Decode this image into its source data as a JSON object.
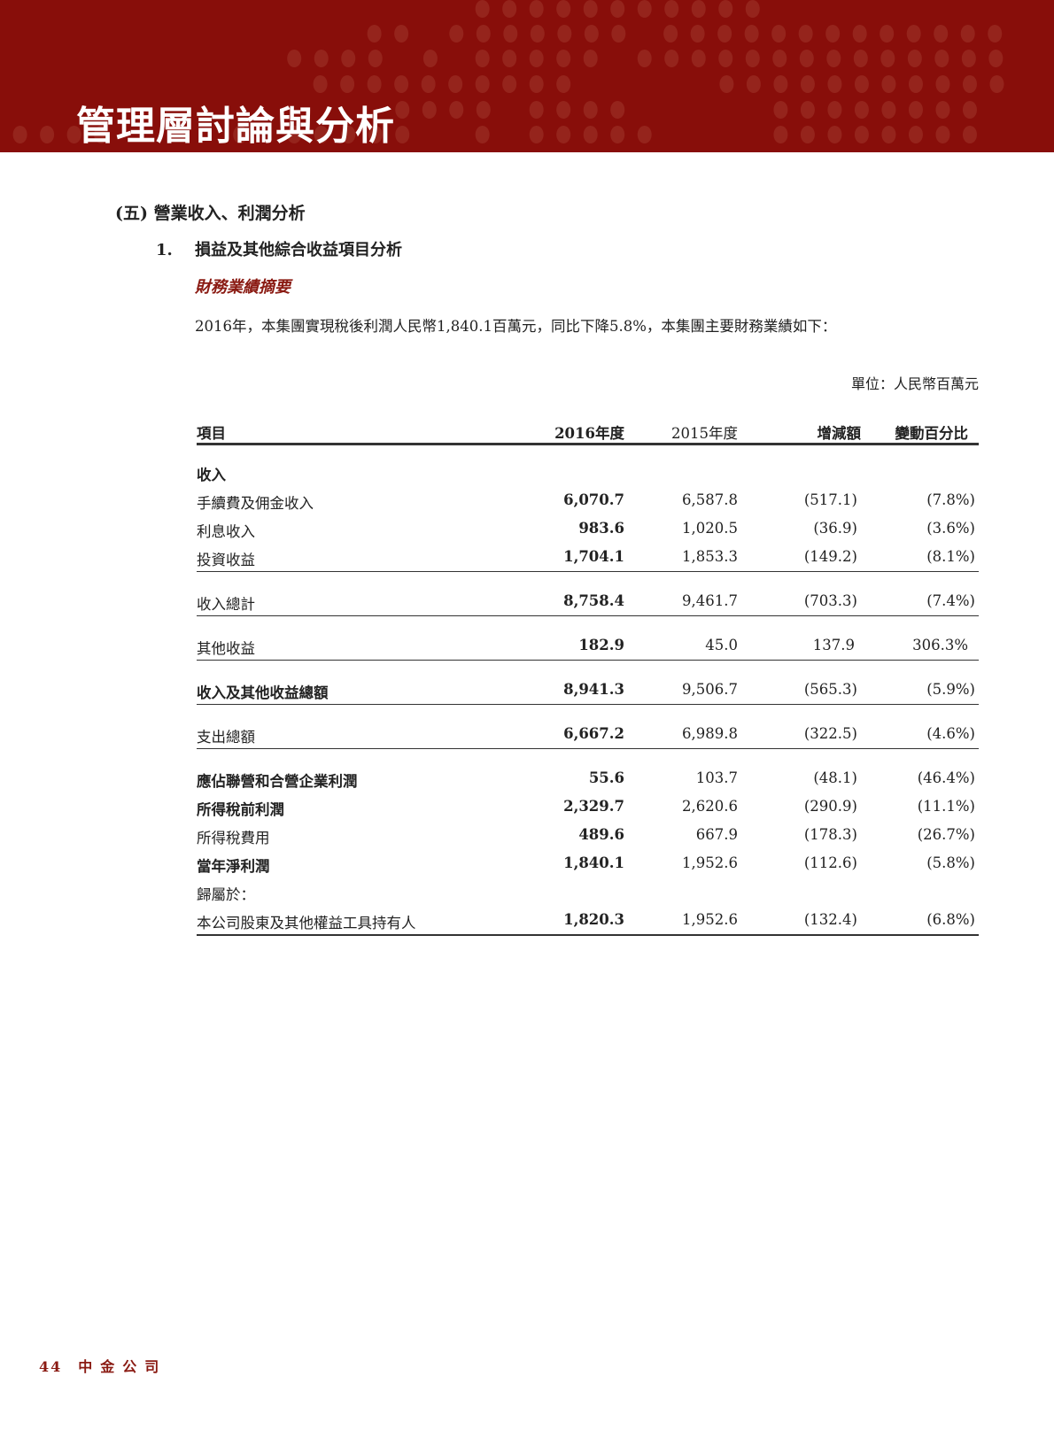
{
  "header": {
    "title": "管理層討論與分析",
    "brand_color": "#880e0a"
  },
  "section": {
    "heading": "(五) 營業收入、利潤分析"
  },
  "subsection": {
    "number": "1.",
    "title": "損益及其他綜合收益項目分析"
  },
  "subheading": "財務業績摘要",
  "paragraph": "2016年，本集團實現稅後利潤人民幣1,840.1百萬元，同比下降5.8%，本集團主要財務業績如下：",
  "unit": "單位：人民幣百萬元",
  "table": {
    "columns": [
      "項目",
      "2016年度",
      "2015年度",
      "增減額",
      "變動百分比"
    ],
    "rows": [
      {
        "label": "收入",
        "bold": true,
        "values": [
          "",
          "",
          "",
          ""
        ]
      },
      {
        "label": "手續費及佣金收入",
        "values": [
          "6,070.7",
          "6,587.8",
          "(517.1)",
          "(7.8%)"
        ]
      },
      {
        "label": "利息收入",
        "values": [
          "983.6",
          "1,020.5",
          "(36.9)",
          "(3.6%)"
        ]
      },
      {
        "label": "投資收益",
        "values": [
          "1,704.1",
          "1,853.3",
          "(149.2)",
          "(8.1%)"
        ],
        "rule": true
      },
      {
        "label": "收入總計",
        "values": [
          "8,758.4",
          "9,461.7",
          "(703.3)",
          "(7.4%)"
        ],
        "rule": true
      },
      {
        "label": "其他收益",
        "values": [
          "182.9",
          "45.0",
          "137.9",
          "306.3%"
        ],
        "rule": true
      },
      {
        "label": "收入及其他收益總額",
        "bold": true,
        "values": [
          "8,941.3",
          "9,506.7",
          "(565.3)",
          "(5.9%)"
        ],
        "rule": true
      },
      {
        "label": "支出總額",
        "values": [
          "6,667.2",
          "6,989.8",
          "(322.5)",
          "(4.6%)"
        ],
        "rule": true
      },
      {
        "label": "應佔聯營和合營企業利潤",
        "bold": true,
        "values": [
          "55.6",
          "103.7",
          "(48.1)",
          "(46.4%)"
        ]
      },
      {
        "label": "所得稅前利潤",
        "bold": true,
        "values": [
          "2,329.7",
          "2,620.6",
          "(290.9)",
          "(11.1%)"
        ]
      },
      {
        "label": "所得稅費用",
        "values": [
          "489.6",
          "667.9",
          "(178.3)",
          "(26.7%)"
        ]
      },
      {
        "label": "當年淨利潤",
        "bold": true,
        "values": [
          "1,840.1",
          "1,952.6",
          "(112.6)",
          "(5.8%)"
        ]
      },
      {
        "label": "歸屬於：",
        "values": [
          "",
          "",
          "",
          ""
        ]
      },
      {
        "label": "本公司股東及其他權益工具持有人",
        "values": [
          "1,820.3",
          "1,952.6",
          "(132.4)",
          "(6.8%)"
        ],
        "thick": true
      }
    ]
  },
  "footer": {
    "page": "44",
    "company": "中金公司"
  }
}
